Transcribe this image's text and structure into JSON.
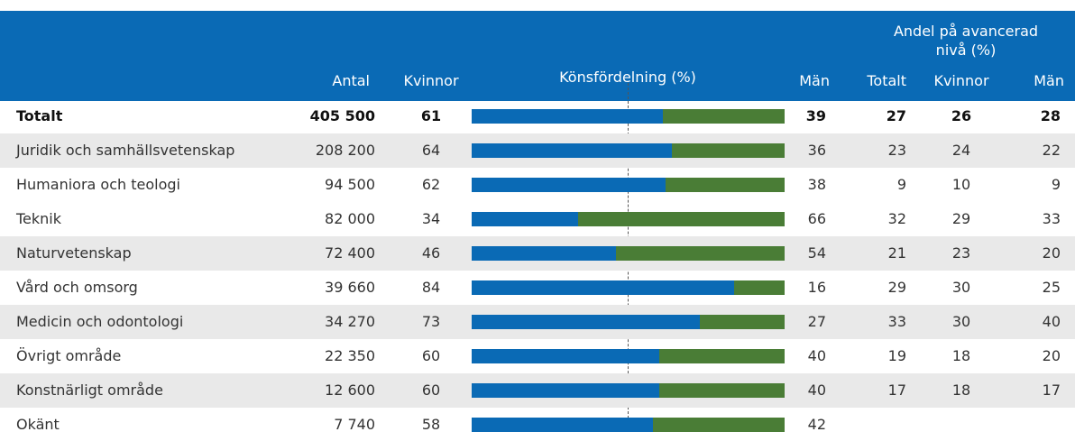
{
  "table": {
    "header": {
      "group_gender": "Könsfördelning (%)",
      "group_advanced": "Andel på avancerad nivå (%)",
      "columns": [
        "Antal",
        "Kvinnor",
        "Män",
        "Totalt",
        "Kvinnor",
        "Män"
      ]
    },
    "rows": [
      {
        "label": "Totalt",
        "antal": "405 500",
        "kvinnor": 61,
        "man": 39,
        "totalt": 27,
        "adv_kvinnor": 26,
        "adv_man": 28
      },
      {
        "label": "Juridik och samhällsvetenskap",
        "antal": "208 200",
        "kvinnor": 64,
        "man": 36,
        "totalt": 23,
        "adv_kvinnor": 24,
        "adv_man": 22
      },
      {
        "label": "Humaniora och teologi",
        "antal": "94 500",
        "kvinnor": 62,
        "man": 38,
        "totalt": 9,
        "adv_kvinnor": 10,
        "adv_man": 9
      },
      {
        "label": "Teknik",
        "antal": "82 000",
        "kvinnor": 34,
        "man": 66,
        "totalt": 32,
        "adv_kvinnor": 29,
        "adv_man": 33
      },
      {
        "label": "Naturvetenskap",
        "antal": "72 400",
        "kvinnor": 46,
        "man": 54,
        "totalt": 21,
        "adv_kvinnor": 23,
        "adv_man": 20
      },
      {
        "label": "Vård och omsorg",
        "antal": "39 660",
        "kvinnor": 84,
        "man": 16,
        "totalt": 29,
        "adv_kvinnor": 30,
        "adv_man": 25
      },
      {
        "label": "Medicin och odontologi",
        "antal": "34 270",
        "kvinnor": 73,
        "man": 27,
        "totalt": 33,
        "adv_kvinnor": 30,
        "adv_man": 40
      },
      {
        "label": "Övrigt område",
        "antal": "22 350",
        "kvinnor": 60,
        "man": 40,
        "totalt": 19,
        "adv_kvinnor": 18,
        "adv_man": 20
      },
      {
        "label": "Konstnärligt område",
        "antal": "12 600",
        "kvinnor": 60,
        "man": 40,
        "totalt": 17,
        "adv_kvinnor": 18,
        "adv_man": 17
      },
      {
        "label": "Okänt",
        "antal": "7 740",
        "kvinnor": 58,
        "man": 42
      }
    ]
  }
}
